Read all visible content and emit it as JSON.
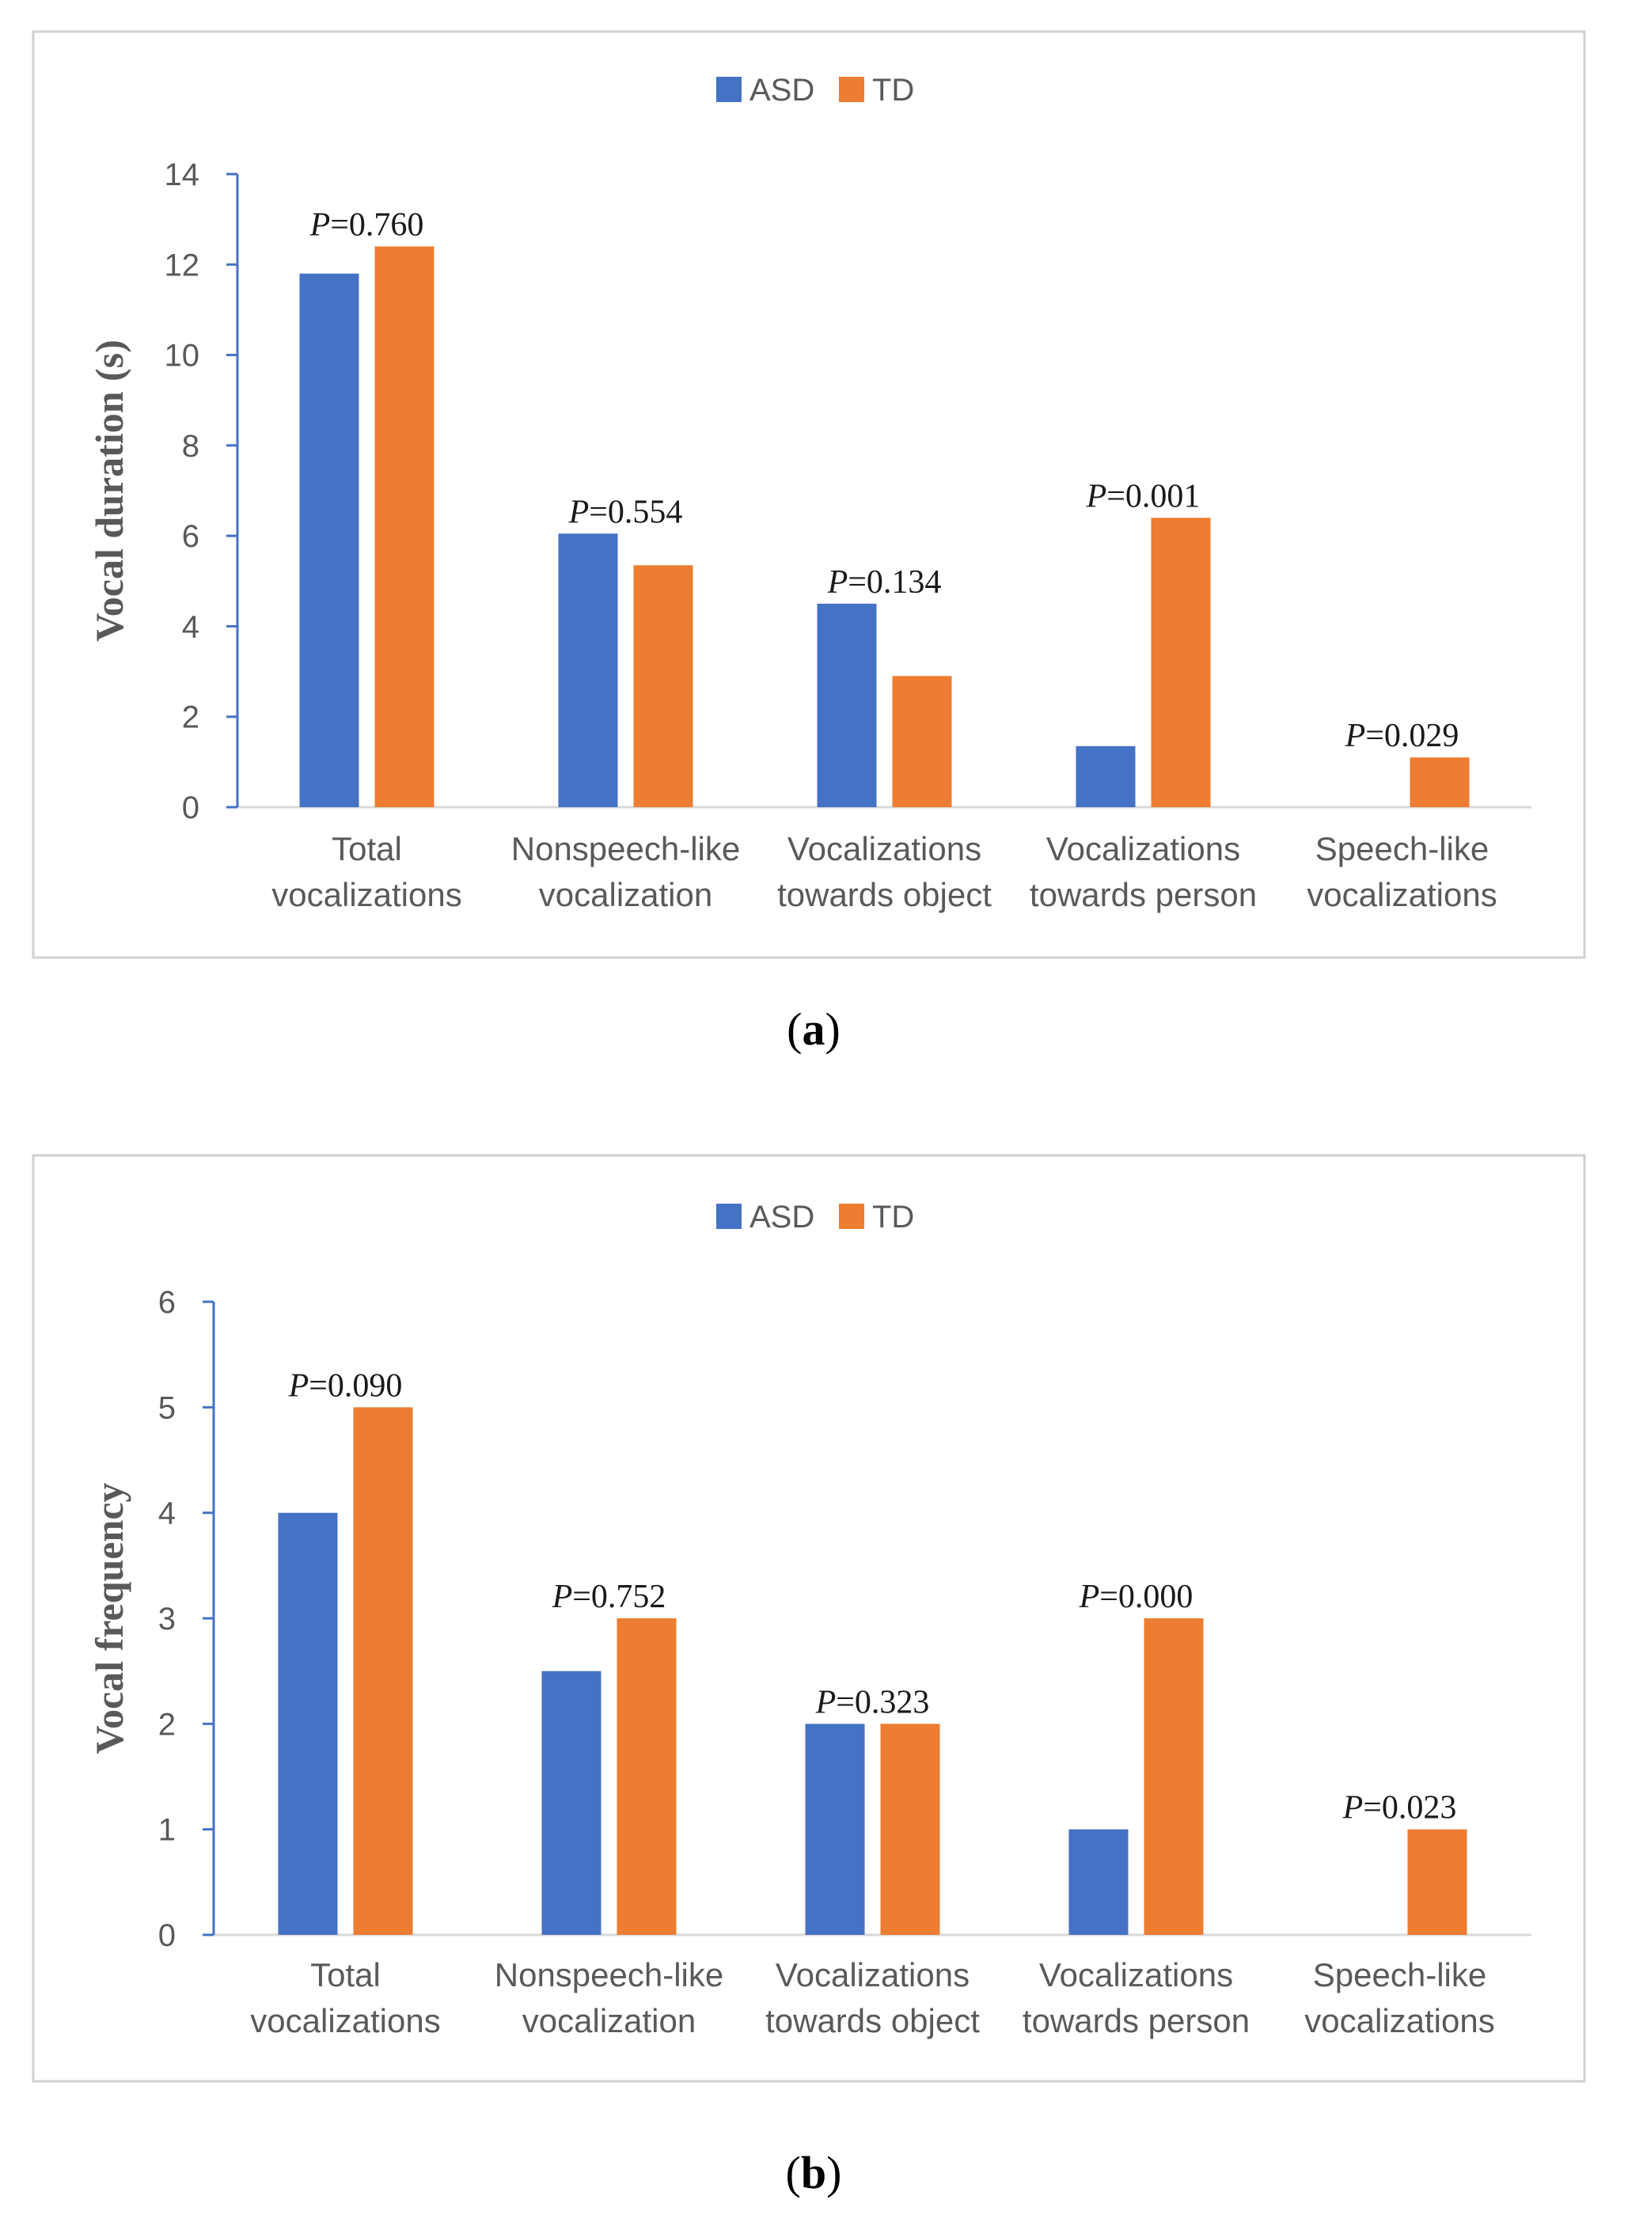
{
  "colors": {
    "asd": "#4472C4",
    "td": "#ED7D31",
    "axis": "#4472C4",
    "frame": "#d0d0d0",
    "text": "#595959"
  },
  "chart_data": [
    {
      "type": "bar",
      "panel_label": "(a)",
      "legend": [
        "ASD",
        "TD"
      ],
      "ylabel": "Vocal duration (s)",
      "xlabel": "",
      "ylim": [
        0,
        14
      ],
      "yticks": [
        "0",
        "2",
        "4",
        "6",
        "8",
        "10",
        "12",
        "14"
      ],
      "categories": [
        [
          "Total",
          "vocalizations"
        ],
        [
          "Nonspeech-like",
          "vocalization"
        ],
        [
          "Vocalizations",
          "towards object"
        ],
        [
          "Vocalizations",
          "towards person"
        ],
        [
          "Speech-like",
          "vocalizations"
        ]
      ],
      "series": [
        {
          "name": "ASD",
          "values": [
            11.8,
            6.05,
            4.5,
            1.35,
            0
          ]
        },
        {
          "name": "TD",
          "values": [
            12.4,
            5.35,
            2.9,
            6.4,
            1.1
          ]
        }
      ],
      "p_values": [
        "=0.760",
        "=0.554",
        "=0.134",
        "=0.001",
        "=0.029"
      ],
      "p_symbol": "P"
    },
    {
      "type": "bar",
      "panel_label": "(b)",
      "legend": [
        "ASD",
        "TD"
      ],
      "ylabel": "Vocal frequency",
      "xlabel": "",
      "ylim": [
        0,
        6
      ],
      "yticks": [
        "0",
        "1",
        "2",
        "3",
        "4",
        "5",
        "6"
      ],
      "categories": [
        [
          "Total",
          "vocalizations"
        ],
        [
          "Nonspeech-like",
          "vocalization"
        ],
        [
          "Vocalizations",
          "towards object"
        ],
        [
          "Vocalizations",
          "towards person"
        ],
        [
          "Speech-like",
          "vocalizations"
        ]
      ],
      "series": [
        {
          "name": "ASD",
          "values": [
            4,
            2.5,
            2,
            1,
            0
          ]
        },
        {
          "name": "TD",
          "values": [
            5,
            3,
            2,
            3,
            1
          ]
        }
      ],
      "p_values": [
        "=0.090",
        "=0.752",
        "=0.323",
        "=0.000",
        "=0.023"
      ],
      "p_symbol": "P"
    }
  ]
}
